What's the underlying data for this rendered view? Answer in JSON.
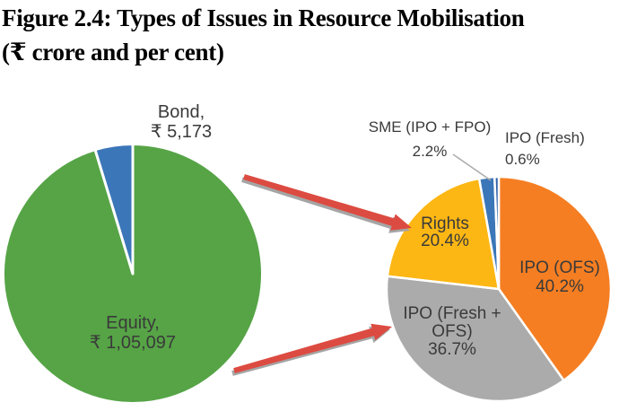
{
  "figure": {
    "title_line1": "Figure 2.4: Types of Issues in Resource Mobilisation",
    "title_line2": "(₹ crore and per cent)"
  },
  "chart_data": [
    {
      "type": "pie",
      "name": "resource-mobilisation-by-instrument",
      "unit": "₹ crore",
      "categories": [
        "Equity",
        "Bond"
      ],
      "values": [
        105097,
        5173
      ],
      "colors": [
        "#56A446",
        "#3B76B8"
      ],
      "value_labels": [
        "Equity, ₹ 1,05,097",
        "Bond, ₹ 5,173"
      ],
      "start_angle_deg": 0,
      "direction": "clockwise",
      "labels_position": "inside-and-outside"
    },
    {
      "type": "pie",
      "name": "equity-issues-breakup",
      "unit": "per cent",
      "categories": [
        "IPO (OFS)",
        "IPO (Fresh + OFS)",
        "Rights",
        "SME (IPO + FPO)",
        "IPO (Fresh)"
      ],
      "values": [
        40.2,
        36.7,
        20.4,
        2.2,
        0.6
      ],
      "colors": [
        "#F57E22",
        "#ACABAB",
        "#FDB714",
        "#3B76B8",
        "#2F62A8"
      ],
      "value_labels": [
        "IPO (OFS) 40.2%",
        "IPO (Fresh + OFS) 36.7%",
        "Rights 20.4%",
        "SME (IPO + FPO) 2.2%",
        "IPO (Fresh) 0.6%"
      ],
      "start_angle_deg": 0,
      "direction": "clockwise",
      "labels_position": "inside-and-outside"
    }
  ],
  "labels": {
    "bond": [
      "Bond,",
      "₹ 5,173"
    ],
    "equity": [
      "Equity,",
      "₹ 1,05,097"
    ],
    "sme": [
      "SME (IPO + FPO)",
      "2.2%"
    ],
    "ipo_fresh": [
      "IPO (Fresh)",
      "0.6%"
    ],
    "rights": [
      "Rights",
      "20.4%"
    ],
    "ipo_ofs": [
      "IPO (OFS)",
      "40.2%"
    ],
    "ipo_fresh_ofs": [
      "IPO (Fresh +",
      "OFS)",
      "36.7%"
    ]
  },
  "colors": {
    "slice_border": "#FFFFFF",
    "arrow_red": "#DC4B41",
    "arrow_shadow": "#A5A5A5",
    "leader_gray": "#ABABAB",
    "label_text": "#3A3A3A"
  }
}
